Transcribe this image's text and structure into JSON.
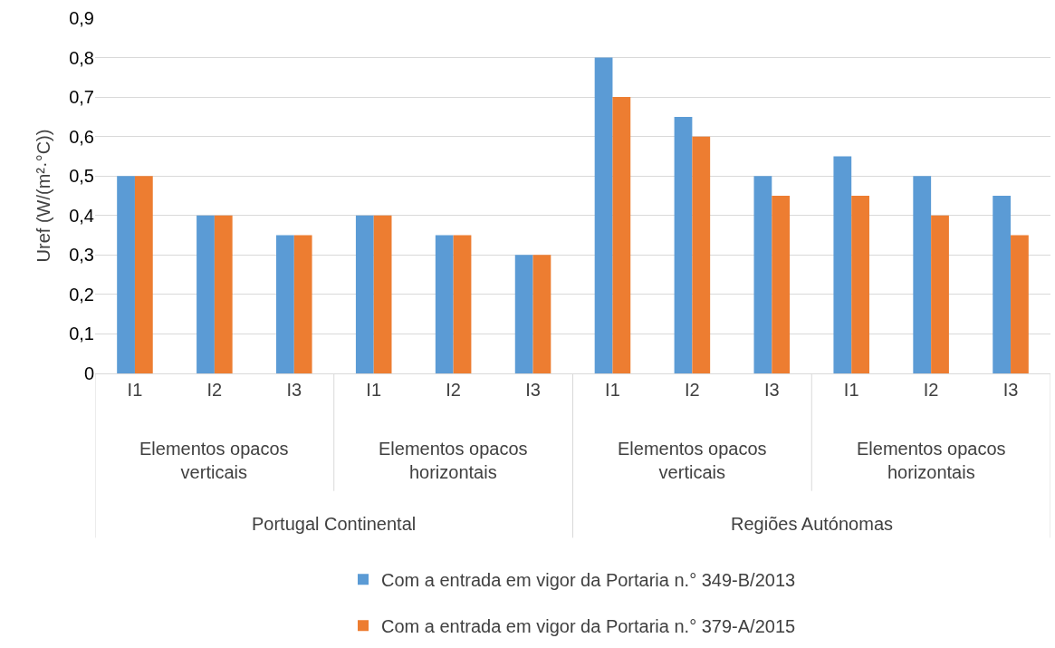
{
  "chart_data": {
    "type": "bar",
    "ylabel": "Uref (W/(m²·°C))",
    "categories": [
      "I1",
      "I2",
      "I3",
      "I1",
      "I2",
      "I3",
      "I1",
      "I2",
      "I3",
      "I1",
      "I2",
      "I3"
    ],
    "series": [
      {
        "name": "Com a entrada em vigor da Portaria n.° 349-B/2013",
        "color": "#5b9bd5",
        "values": [
          0.5,
          0.4,
          0.35,
          0.4,
          0.35,
          0.3,
          0.8,
          0.65,
          0.5,
          0.55,
          0.5,
          0.45
        ]
      },
      {
        "name": "Com a entrada em vigor da Portaria n.° 379-A/2015",
        "color": "#ed7d31",
        "values": [
          0.5,
          0.4,
          0.35,
          0.4,
          0.35,
          0.3,
          0.7,
          0.6,
          0.45,
          0.45,
          0.4,
          0.35
        ]
      }
    ],
    "annotations": [
      "Elementos opacos\nverticais",
      "Elementos opacos\nhorizontais",
      "Elementos opacos\nverticais",
      "Elementos opacos\nhorizontais",
      "Portugal Continental",
      "Regiões Autónomas"
    ],
    "ylim": [
      0,
      0.9
    ],
    "yticks": [
      0,
      {
        "value": 0.1,
        "label": "0,1"
      },
      {
        "value": 0.2,
        "label": "0,2"
      },
      {
        "value": 0.3,
        "label": "0,3"
      },
      {
        "value": 0.4,
        "label": "0,4"
      },
      {
        "value": 0.5,
        "label": "0,5"
      },
      {
        "value": 0.6,
        "label": "0,6"
      },
      {
        "value": 0.7,
        "label": "0,7"
      },
      {
        "value": 0.8,
        "label": "0,8"
      },
      {
        "value": 0.9,
        "label": "0,9"
      }
    ],
    "grid": "y",
    "legend": "bottom"
  }
}
